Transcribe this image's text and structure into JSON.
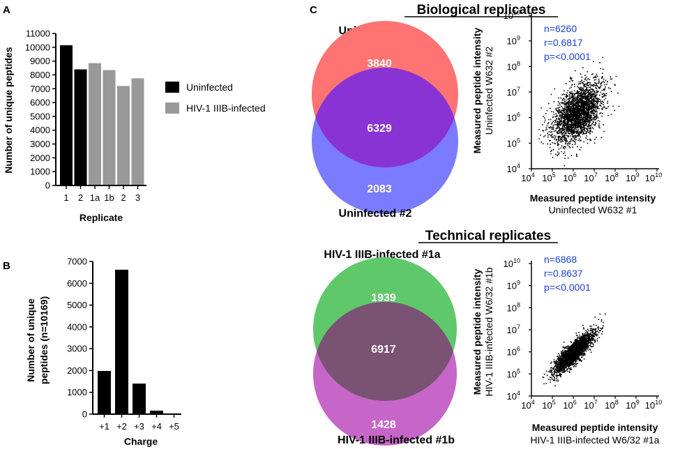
{
  "panels": {
    "A": "A",
    "B": "B",
    "C": "C"
  },
  "chart_data": [
    {
      "id": "A",
      "type": "bar",
      "categories": [
        "1",
        "2",
        "1a",
        "1b",
        "2",
        "3"
      ],
      "values": [
        10150,
        8400,
        8850,
        8350,
        7200,
        7750
      ],
      "bar_groups": [
        "Uninfected",
        "Uninfected",
        "HIV-1 IIIB-infected",
        "HIV-1 IIIB-infected",
        "HIV-1 IIIB-infected",
        "HIV-1 IIIB-infected"
      ],
      "ylim": [
        0,
        11000
      ],
      "yticks": [
        0,
        1000,
        2000,
        3000,
        4000,
        5000,
        6000,
        7000,
        8000,
        9000,
        10000,
        11000
      ],
      "ylabel": "Number of unique peptides",
      "xlabel": "Replicate",
      "legend": [
        {
          "label": "Uninfected",
          "color": "#000000"
        },
        {
          "label": "HIV-1 IIIB-infected",
          "color": "#999999"
        }
      ]
    },
    {
      "id": "B",
      "type": "bar",
      "categories": [
        "+1",
        "+2",
        "+3",
        "+4",
        "+5"
      ],
      "values": [
        1980,
        6620,
        1400,
        160,
        20
      ],
      "ylim": [
        0,
        7000
      ],
      "yticks": [
        0,
        1000,
        2000,
        3000,
        4000,
        5000,
        6000,
        7000
      ],
      "ylabel_line1": "Number of unique",
      "ylabel_line2": "peptides (n=10169)",
      "xlabel": "Charge"
    },
    {
      "id": "C-venn-biological",
      "type": "venn",
      "title": "Biological replicates",
      "set_a": "Uninfected #1",
      "set_b": "Uninfected #2",
      "only_a": "3840",
      "both": "6329",
      "only_b": "2083",
      "colors": {
        "a": "#ff7373",
        "b": "#7b7bff",
        "overlap": "#8a33d4"
      }
    },
    {
      "id": "C-scatter-biological",
      "type": "scatter",
      "scale": "log",
      "xlim_exp": [
        4,
        10
      ],
      "ylim_exp": [
        4,
        10
      ],
      "tick_base": "10",
      "tick_exps": [
        "4",
        "5",
        "6",
        "7",
        "8",
        "9",
        "10"
      ],
      "n": "n=6260",
      "r": "r=0.6817",
      "p": "p=<0.0001",
      "center_exp": 6.2,
      "spread": 0.42,
      "xlabel_bold": "Measured peptide intensity",
      "xlabel_sub": "Uninfected W632 #1",
      "ylabel_bold": "Measured peptide intensity",
      "ylabel_sub": "Uninfected W632 #2"
    },
    {
      "id": "C-venn-technical",
      "type": "venn",
      "title": "Technical replicates",
      "set_a": "HIV-1 IIIB-infected #1a",
      "set_b": "HIV-1 IIIB-infected #1b",
      "only_a": "1939",
      "both": "6917",
      "only_b": "1428",
      "colors": {
        "a": "#5fc86a",
        "b": "#c766c9",
        "overlap": "#7a5274"
      }
    },
    {
      "id": "C-scatter-technical",
      "type": "scatter",
      "scale": "log",
      "xlim_exp": [
        4,
        10
      ],
      "ylim_exp": [
        4,
        10
      ],
      "tick_base": "10",
      "tick_exps": [
        "4",
        "5",
        "6",
        "7",
        "8",
        "9",
        "10"
      ],
      "n": "n=6868",
      "r": "r=0.8637",
      "p": "p=<0.0001",
      "center_exp": 6.0,
      "spread": 0.18,
      "xlabel_bold": "Measured peptide intensity",
      "xlabel_sub": "HIV-1 IIIB-infected W6/32 #1a",
      "ylabel_bold": "Measured peptide intensity",
      "ylabel_sub": "HIV-1 IIIB-infected W6/32 #1b"
    }
  ]
}
